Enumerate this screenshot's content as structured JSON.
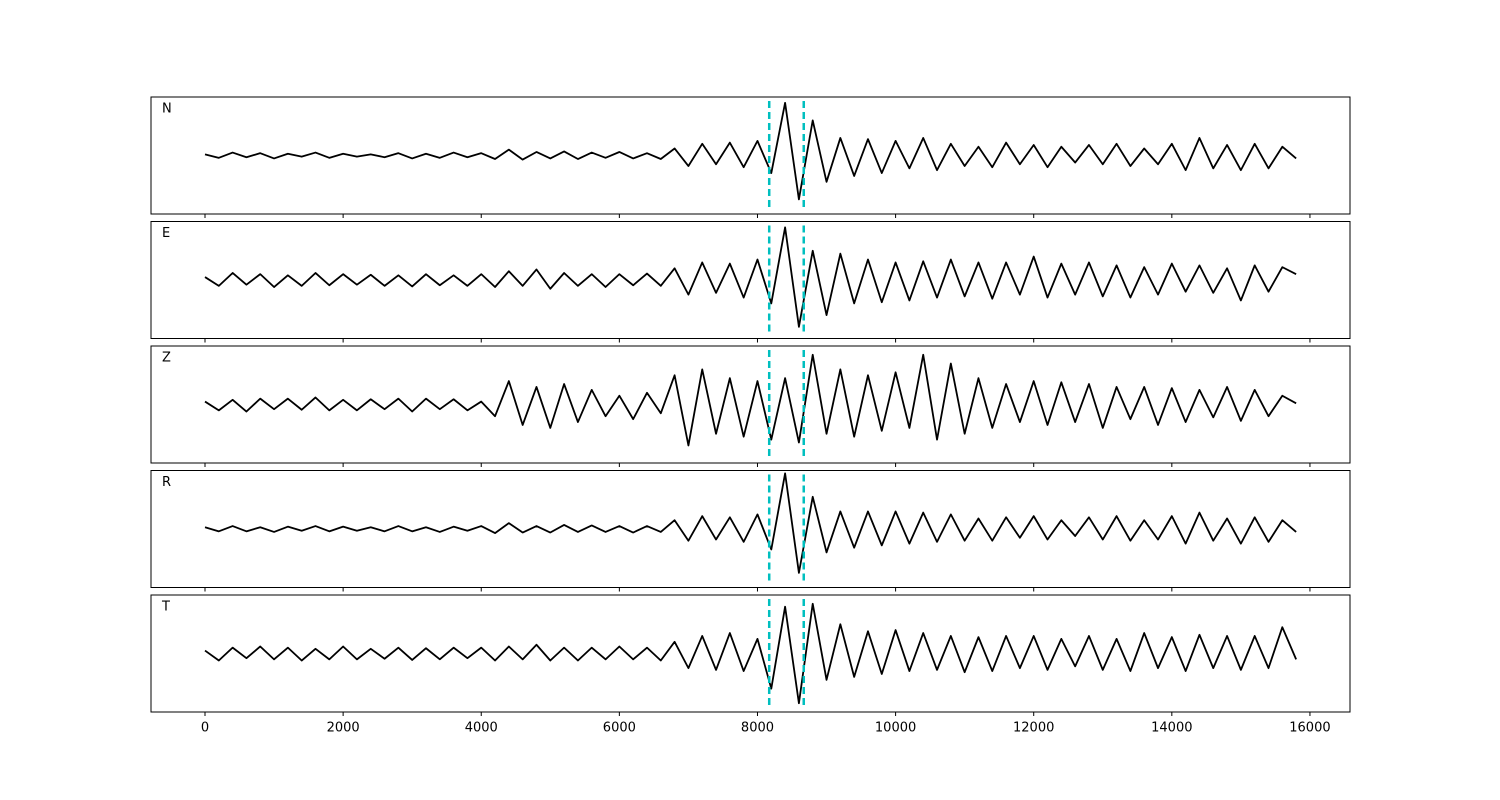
{
  "chart_data": {
    "type": "line",
    "subplots": true,
    "vlines": [
      8170,
      8670
    ],
    "vline_color": "#00bfbf",
    "xlim": [
      -782,
      16580
    ],
    "ylim": [
      -1,
      1
    ],
    "xticks": [
      0,
      2000,
      4000,
      6000,
      8000,
      10000,
      12000,
      14000,
      16000
    ],
    "x": [
      0,
      200,
      400,
      600,
      800,
      1000,
      1200,
      1400,
      1600,
      1800,
      2000,
      2200,
      2400,
      2600,
      2800,
      3000,
      3200,
      3400,
      3600,
      3800,
      4000,
      4200,
      4400,
      4600,
      4800,
      5000,
      5200,
      5400,
      5600,
      5800,
      6000,
      6200,
      6400,
      6600,
      6800,
      7000,
      7200,
      7400,
      7600,
      7800,
      8000,
      8200,
      8400,
      8600,
      8800,
      9000,
      9200,
      9400,
      9600,
      9800,
      10000,
      10200,
      10400,
      10600,
      10800,
      11000,
      11200,
      11400,
      11600,
      11800,
      12000,
      12200,
      12400,
      12600,
      12800,
      13000,
      13200,
      13400,
      13600,
      13800,
      14000,
      14200,
      14400,
      14600,
      14800,
      15000,
      15200,
      15400,
      15600,
      15800
    ],
    "series": [
      {
        "name": "N",
        "color": "#000000",
        "values": [
          0.02,
          -0.04,
          0.05,
          -0.03,
          0.04,
          -0.05,
          0.03,
          -0.02,
          0.05,
          -0.04,
          0.03,
          -0.02,
          0.02,
          -0.03,
          0.04,
          -0.05,
          0.03,
          -0.04,
          0.05,
          -0.03,
          0.04,
          -0.06,
          0.1,
          -0.07,
          0.06,
          -0.05,
          0.07,
          -0.06,
          0.05,
          -0.04,
          0.06,
          -0.05,
          0.04,
          -0.06,
          0.12,
          -0.18,
          0.2,
          -0.15,
          0.22,
          -0.2,
          0.25,
          -0.3,
          0.9,
          -0.75,
          0.6,
          -0.45,
          0.3,
          -0.35,
          0.28,
          -0.3,
          0.25,
          -0.22,
          0.3,
          -0.25,
          0.2,
          -0.18,
          0.15,
          -0.2,
          0.22,
          -0.15,
          0.18,
          -0.2,
          0.15,
          -0.12,
          0.18,
          -0.15,
          0.2,
          -0.18,
          0.12,
          -0.15,
          0.2,
          -0.25,
          0.3,
          -0.22,
          0.18,
          -0.25,
          0.2,
          -0.22,
          0.15,
          -0.05
        ]
      },
      {
        "name": "E",
        "color": "#000000",
        "values": [
          0.05,
          -0.1,
          0.12,
          -0.08,
          0.1,
          -0.12,
          0.08,
          -0.1,
          0.12,
          -0.09,
          0.1,
          -0.08,
          0.09,
          -0.1,
          0.08,
          -0.11,
          0.1,
          -0.09,
          0.08,
          -0.1,
          0.1,
          -0.12,
          0.15,
          -0.1,
          0.18,
          -0.15,
          0.12,
          -0.1,
          0.1,
          -0.12,
          0.1,
          -0.09,
          0.11,
          -0.1,
          0.2,
          -0.25,
          0.3,
          -0.22,
          0.28,
          -0.3,
          0.35,
          -0.4,
          0.9,
          -0.8,
          0.5,
          -0.6,
          0.45,
          -0.4,
          0.35,
          -0.38,
          0.3,
          -0.35,
          0.32,
          -0.3,
          0.35,
          -0.28,
          0.3,
          -0.32,
          0.3,
          -0.25,
          0.4,
          -0.3,
          0.28,
          -0.25,
          0.3,
          -0.28,
          0.25,
          -0.3,
          0.22,
          -0.25,
          0.28,
          -0.2,
          0.25,
          -0.22,
          0.2,
          -0.35,
          0.25,
          -0.2,
          0.22,
          0.1
        ]
      },
      {
        "name": "Z",
        "color": "#000000",
        "values": [
          0.05,
          -0.1,
          0.08,
          -0.12,
          0.1,
          -0.08,
          0.1,
          -0.09,
          0.12,
          -0.1,
          0.08,
          -0.1,
          0.09,
          -0.08,
          0.1,
          -0.12,
          0.1,
          -0.08,
          0.09,
          -0.1,
          0.05,
          -0.2,
          0.4,
          -0.35,
          0.3,
          -0.4,
          0.35,
          -0.3,
          0.25,
          -0.2,
          0.15,
          -0.25,
          0.2,
          -0.15,
          0.5,
          -0.7,
          0.6,
          -0.5,
          0.45,
          -0.55,
          0.4,
          -0.6,
          0.45,
          -0.65,
          0.85,
          -0.5,
          0.6,
          -0.55,
          0.5,
          -0.45,
          0.55,
          -0.4,
          0.85,
          -0.6,
          0.7,
          -0.5,
          0.45,
          -0.4,
          0.35,
          -0.3,
          0.4,
          -0.35,
          0.38,
          -0.3,
          0.35,
          -0.4,
          0.3,
          -0.25,
          0.3,
          -0.35,
          0.28,
          -0.3,
          0.25,
          -0.22,
          0.3,
          -0.28,
          0.25,
          -0.2,
          0.15,
          0.02
        ]
      },
      {
        "name": "R",
        "color": "#000000",
        "values": [
          0.03,
          -0.04,
          0.05,
          -0.04,
          0.03,
          -0.05,
          0.04,
          -0.03,
          0.05,
          -0.04,
          0.04,
          -0.03,
          0.03,
          -0.04,
          0.05,
          -0.04,
          0.03,
          -0.05,
          0.04,
          -0.03,
          0.05,
          -0.07,
          0.1,
          -0.06,
          0.05,
          -0.06,
          0.07,
          -0.05,
          0.06,
          -0.05,
          0.05,
          -0.06,
          0.05,
          -0.05,
          0.15,
          -0.2,
          0.22,
          -0.18,
          0.2,
          -0.22,
          0.25,
          -0.35,
          0.95,
          -0.75,
          0.55,
          -0.4,
          0.3,
          -0.32,
          0.3,
          -0.28,
          0.3,
          -0.25,
          0.28,
          -0.22,
          0.25,
          -0.2,
          0.18,
          -0.2,
          0.2,
          -0.15,
          0.22,
          -0.18,
          0.15,
          -0.12,
          0.2,
          -0.18,
          0.22,
          -0.2,
          0.15,
          -0.18,
          0.22,
          -0.25,
          0.28,
          -0.2,
          0.18,
          -0.25,
          0.2,
          -0.22,
          0.15,
          -0.05
        ]
      },
      {
        "name": "T",
        "color": "#000000",
        "values": [
          0.05,
          -0.12,
          0.1,
          -0.08,
          0.12,
          -0.1,
          0.1,
          -0.12,
          0.08,
          -0.1,
          0.12,
          -0.1,
          0.08,
          -0.09,
          0.1,
          -0.11,
          0.09,
          -0.1,
          0.1,
          -0.08,
          0.1,
          -0.12,
          0.12,
          -0.1,
          0.15,
          -0.12,
          0.1,
          -0.12,
          0.1,
          -0.1,
          0.12,
          -0.1,
          0.1,
          -0.12,
          0.2,
          -0.25,
          0.3,
          -0.28,
          0.35,
          -0.3,
          0.25,
          -0.6,
          0.8,
          -0.85,
          0.85,
          -0.45,
          0.5,
          -0.4,
          0.38,
          -0.35,
          0.4,
          -0.3,
          0.35,
          -0.28,
          0.3,
          -0.32,
          0.28,
          -0.3,
          0.3,
          -0.25,
          0.3,
          -0.28,
          0.25,
          -0.22,
          0.3,
          -0.28,
          0.25,
          -0.3,
          0.35,
          -0.25,
          0.28,
          -0.3,
          0.32,
          -0.25,
          0.3,
          -0.28,
          0.3,
          -0.25,
          0.45,
          -0.1
        ]
      }
    ]
  }
}
